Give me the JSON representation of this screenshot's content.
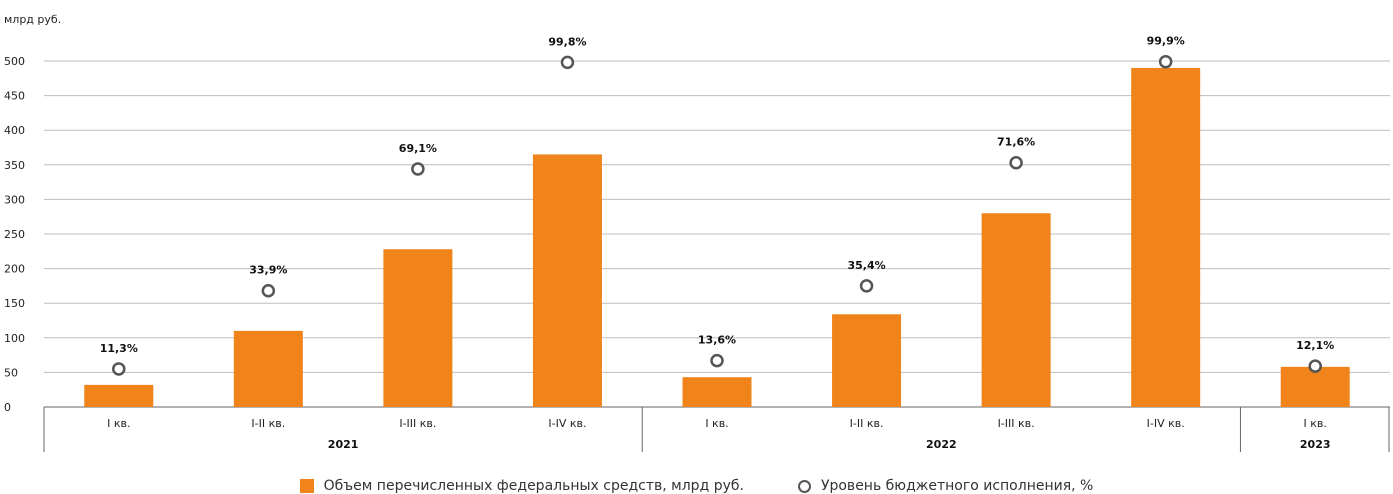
{
  "chart_data": {
    "type": "bar",
    "unit_label": "млрд руб.",
    "y_ticks": [
      0,
      50,
      100,
      150,
      200,
      250,
      300,
      350,
      400,
      450,
      500
    ],
    "ylim": [
      0,
      520
    ],
    "categories": [
      "I кв.",
      "I-II кв.",
      "I-III кв.",
      "I-IV кв.",
      "I кв.",
      "I-II кв.",
      "I-III кв.",
      "I-IV кв.",
      "I кв."
    ],
    "groups": [
      {
        "label": "2021",
        "count": 4
      },
      {
        "label": "2022",
        "count": 4
      },
      {
        "label": "2023",
        "count": 1
      }
    ],
    "series": [
      {
        "name": "Объем перечисленных федеральных средств, млрд руб.",
        "type": "bar",
        "color": "#f0841b",
        "values": [
          32,
          110,
          228,
          365,
          43,
          134,
          280,
          490,
          58
        ]
      },
      {
        "name": "Уровень бюджетного исполнения, %",
        "type": "scatter",
        "color": "#555555",
        "positions": [
          55,
          168,
          344,
          498,
          67,
          175,
          353,
          499,
          59
        ],
        "labels": [
          "11,3%",
          "33,9%",
          "69,1%",
          "99,8%",
          "13,6%",
          "35,4%",
          "71,6%",
          "99,9%",
          "12,1%"
        ]
      }
    ],
    "grid": true,
    "legend_position": "bottom-center"
  }
}
